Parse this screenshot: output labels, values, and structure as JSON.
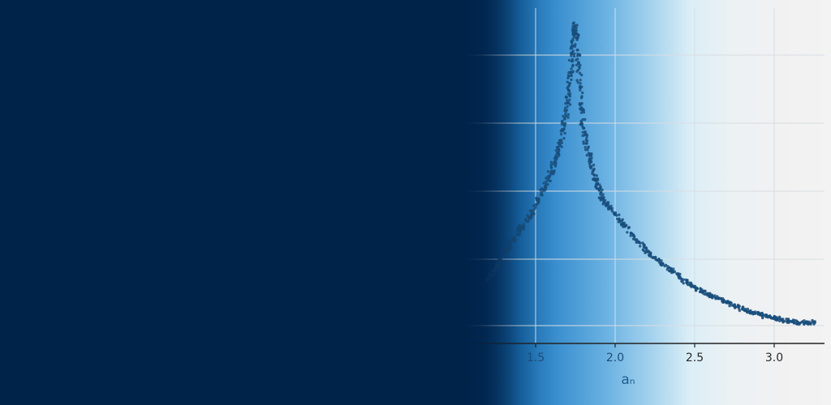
{
  "chart_data": {
    "type": "scatter",
    "title": "",
    "xlabel": "aₙ",
    "ylabel": "",
    "xlim": [
      1.0,
      3.3
    ],
    "ylim": [
      0,
      1.0
    ],
    "xticks": [
      "1.5",
      "2.0",
      "2.5",
      "3.0"
    ],
    "grid": true,
    "point_color": "#1a4f7c",
    "series": [
      {
        "x": [
          1.2,
          1.24,
          1.28,
          1.32,
          1.36,
          1.4,
          1.44,
          1.48,
          1.52,
          1.56,
          1.6,
          1.62,
          1.64,
          1.66,
          1.68,
          1.7,
          1.71,
          1.72,
          1.73,
          1.74,
          1.75,
          1.76,
          1.77,
          1.78,
          1.79,
          1.8,
          1.82,
          1.84,
          1.86,
          1.88,
          1.9,
          1.92,
          1.95,
          2.0,
          2.05,
          2.1,
          2.15,
          2.2,
          2.25,
          2.3,
          2.35,
          2.4,
          2.45,
          2.5,
          2.55,
          2.6,
          2.65,
          2.7,
          2.75,
          2.8,
          2.85,
          2.9,
          2.95,
          3.0,
          3.05,
          3.1,
          3.15,
          3.2,
          3.25
        ],
        "y": [
          0.17,
          0.2,
          0.23,
          0.27,
          0.3,
          0.33,
          0.36,
          0.39,
          0.43,
          0.47,
          0.52,
          0.55,
          0.58,
          0.62,
          0.67,
          0.74,
          0.78,
          0.84,
          0.9,
          0.96,
          0.99,
          0.95,
          0.87,
          0.79,
          0.72,
          0.66,
          0.61,
          0.56,
          0.52,
          0.49,
          0.46,
          0.43,
          0.41,
          0.38,
          0.35,
          0.32,
          0.29,
          0.26,
          0.24,
          0.22,
          0.2,
          0.18,
          0.16,
          0.145,
          0.13,
          0.12,
          0.11,
          0.095,
          0.085,
          0.075,
          0.065,
          0.058,
          0.05,
          0.045,
          0.04,
          0.035,
          0.03,
          0.032,
          0.031
        ]
      }
    ]
  }
}
